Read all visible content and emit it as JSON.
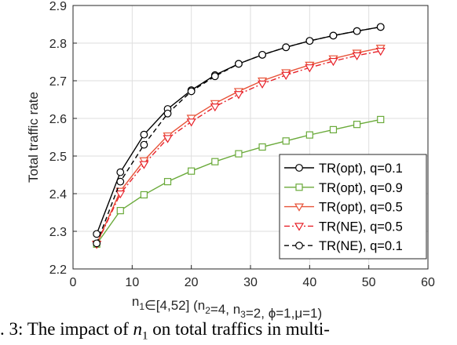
{
  "chart_data": {
    "type": "line",
    "title": "",
    "ylabel": "Total traffic rate",
    "xlabel": {
      "text": "n1∈[4,52] (n2=4, n3=2, ϕ=1,μ=1)",
      "parts": [
        {
          "t": "n",
          "sub": false
        },
        {
          "t": "1",
          "sub": true
        },
        {
          "t": "∈[4,52] (n",
          "sub": false
        },
        {
          "t": "2",
          "sub": true
        },
        {
          "t": "=4, n",
          "sub": false
        },
        {
          "t": "3",
          "sub": true
        },
        {
          "t": "=2, ϕ=1,μ=1)",
          "sub": false
        }
      ]
    },
    "xlim": [
      0,
      60
    ],
    "ylim": [
      2.2,
      2.9
    ],
    "xticks": [
      "0",
      "10",
      "20",
      "30",
      "40",
      "50",
      "60"
    ],
    "yticks": [
      "2.2",
      "2.3",
      "2.4",
      "2.5",
      "2.6",
      "2.7",
      "2.8",
      "2.9"
    ],
    "grid": true,
    "legend_position": "bottom-right",
    "x": [
      4,
      8,
      12,
      16,
      20,
      24,
      28,
      32,
      36,
      40,
      44,
      48,
      52
    ],
    "series": [
      {
        "name": "TR(opt), q=0.1",
        "color": "#000000",
        "dash": "solid",
        "marker": "circle",
        "values": [
          2.293,
          2.457,
          2.557,
          2.625,
          2.675,
          2.715,
          2.745,
          2.769,
          2.789,
          2.806,
          2.82,
          2.832,
          2.843
        ]
      },
      {
        "name": "TR(opt), q=0.9",
        "color": "#6aaa3a",
        "dash": "solid",
        "marker": "square",
        "values": [
          2.266,
          2.355,
          2.397,
          2.432,
          2.46,
          2.485,
          2.506,
          2.524,
          2.54,
          2.556,
          2.57,
          2.584,
          2.597
        ]
      },
      {
        "name": "TR(opt), q=0.5",
        "color": "#e8543a",
        "dash": "solid",
        "marker": "triangle-down",
        "values": [
          2.266,
          2.407,
          2.488,
          2.554,
          2.601,
          2.64,
          2.672,
          2.7,
          2.722,
          2.742,
          2.759,
          2.774,
          2.787
        ]
      },
      {
        "name": "TR(NE), q=0.5",
        "color": "#e8222a",
        "dash": "dashdot",
        "marker": "triangle-down",
        "values": [
          2.266,
          2.4,
          2.478,
          2.547,
          2.591,
          2.631,
          2.664,
          2.692,
          2.715,
          2.735,
          2.752,
          2.767,
          2.779
        ]
      },
      {
        "name": "TR(NE), q=0.1",
        "color": "#000000",
        "dash": "dashed",
        "marker": "circle",
        "values": [
          2.268,
          2.432,
          2.53,
          2.613,
          2.672,
          2.712,
          2.745,
          2.769,
          2.789,
          2.806,
          2.82,
          2.832,
          2.843
        ]
      }
    ]
  },
  "caption": {
    "prefix": ". 3: The impact of ",
    "math_var": "n",
    "math_sub": "1",
    "suffix": " on total traffics in multi-"
  }
}
